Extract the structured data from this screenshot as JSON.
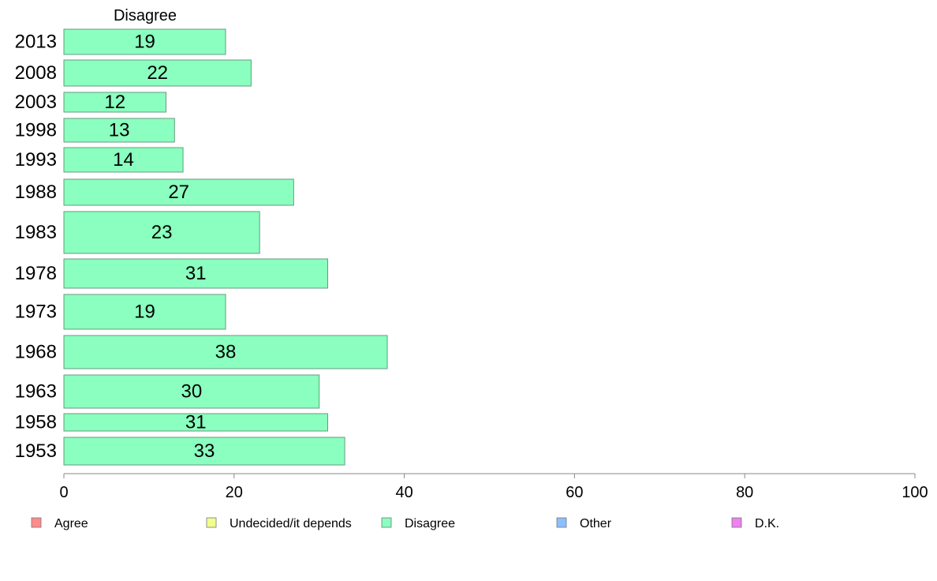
{
  "chart_data": {
    "type": "bar",
    "orientation": "horizontal",
    "panel_title": "Disagree",
    "categories": [
      "2013",
      "2008",
      "2003",
      "1998",
      "1993",
      "1988",
      "1983",
      "1978",
      "1973",
      "1968",
      "1963",
      "1958",
      "1953"
    ],
    "values": [
      19,
      22,
      12,
      13,
      14,
      27,
      23,
      31,
      19,
      38,
      30,
      31,
      33
    ],
    "xlim": [
      0,
      100
    ],
    "xticks": [
      "0",
      "20",
      "40",
      "60",
      "80",
      "100"
    ],
    "grid": false,
    "bar_color": "#8affbf",
    "bar_stroke": "#6a9a80",
    "legend": {
      "placement": "bottom",
      "entries": [
        {
          "label": "Agree",
          "color": "#ff8c8c"
        },
        {
          "label": "Undecided/it depends",
          "color": "#f2ff8c"
        },
        {
          "label": "Disagree",
          "color": "#8affbf"
        },
        {
          "label": "Other",
          "color": "#8cbfff"
        },
        {
          "label": "D.K.",
          "color": "#ee82ee"
        }
      ]
    }
  }
}
